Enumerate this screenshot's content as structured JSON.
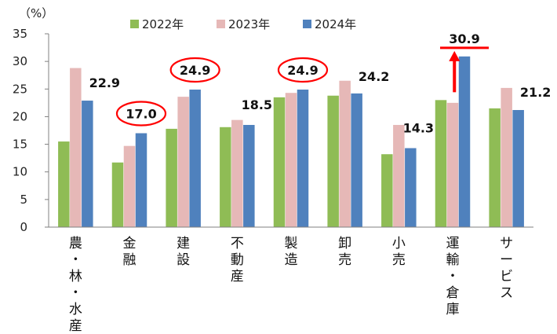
{
  "chart_data": {
    "type": "bar",
    "ylabel": "（%）",
    "ylim": [
      0,
      35
    ],
    "yticks": [
      0,
      5,
      10,
      15,
      20,
      25,
      30,
      35
    ],
    "grid": false,
    "legend_position": "top",
    "categories": [
      "農・林・水産",
      "金融",
      "建設",
      "不動産",
      "製造",
      "卸売",
      "小売",
      "運輸・倉庫",
      "サービス"
    ],
    "series": [
      {
        "name": "2022年",
        "color": "#8fbc55",
        "values": [
          15.5,
          11.7,
          17.8,
          18.1,
          23.5,
          23.8,
          13.2,
          23.0,
          21.5
        ]
      },
      {
        "name": "2023年",
        "color": "#e6b8b7",
        "values": [
          28.8,
          14.7,
          23.6,
          19.4,
          24.3,
          26.5,
          18.5,
          22.5,
          25.2
        ]
      },
      {
        "name": "2024年",
        "color": "#4f81bd",
        "values": [
          22.9,
          17.0,
          24.9,
          18.5,
          24.9,
          24.2,
          14.3,
          30.9,
          21.2
        ]
      }
    ],
    "data_labels": [
      "22.9",
      "17.0",
      "24.9",
      "18.5",
      "24.9",
      "24.2",
      "14.3",
      "30.9",
      "21.2"
    ],
    "circled_labels": [
      "17.0",
      "24.9",
      "24.9"
    ],
    "highlighted_label": "30.9",
    "highlight_color": "#ff0000"
  }
}
